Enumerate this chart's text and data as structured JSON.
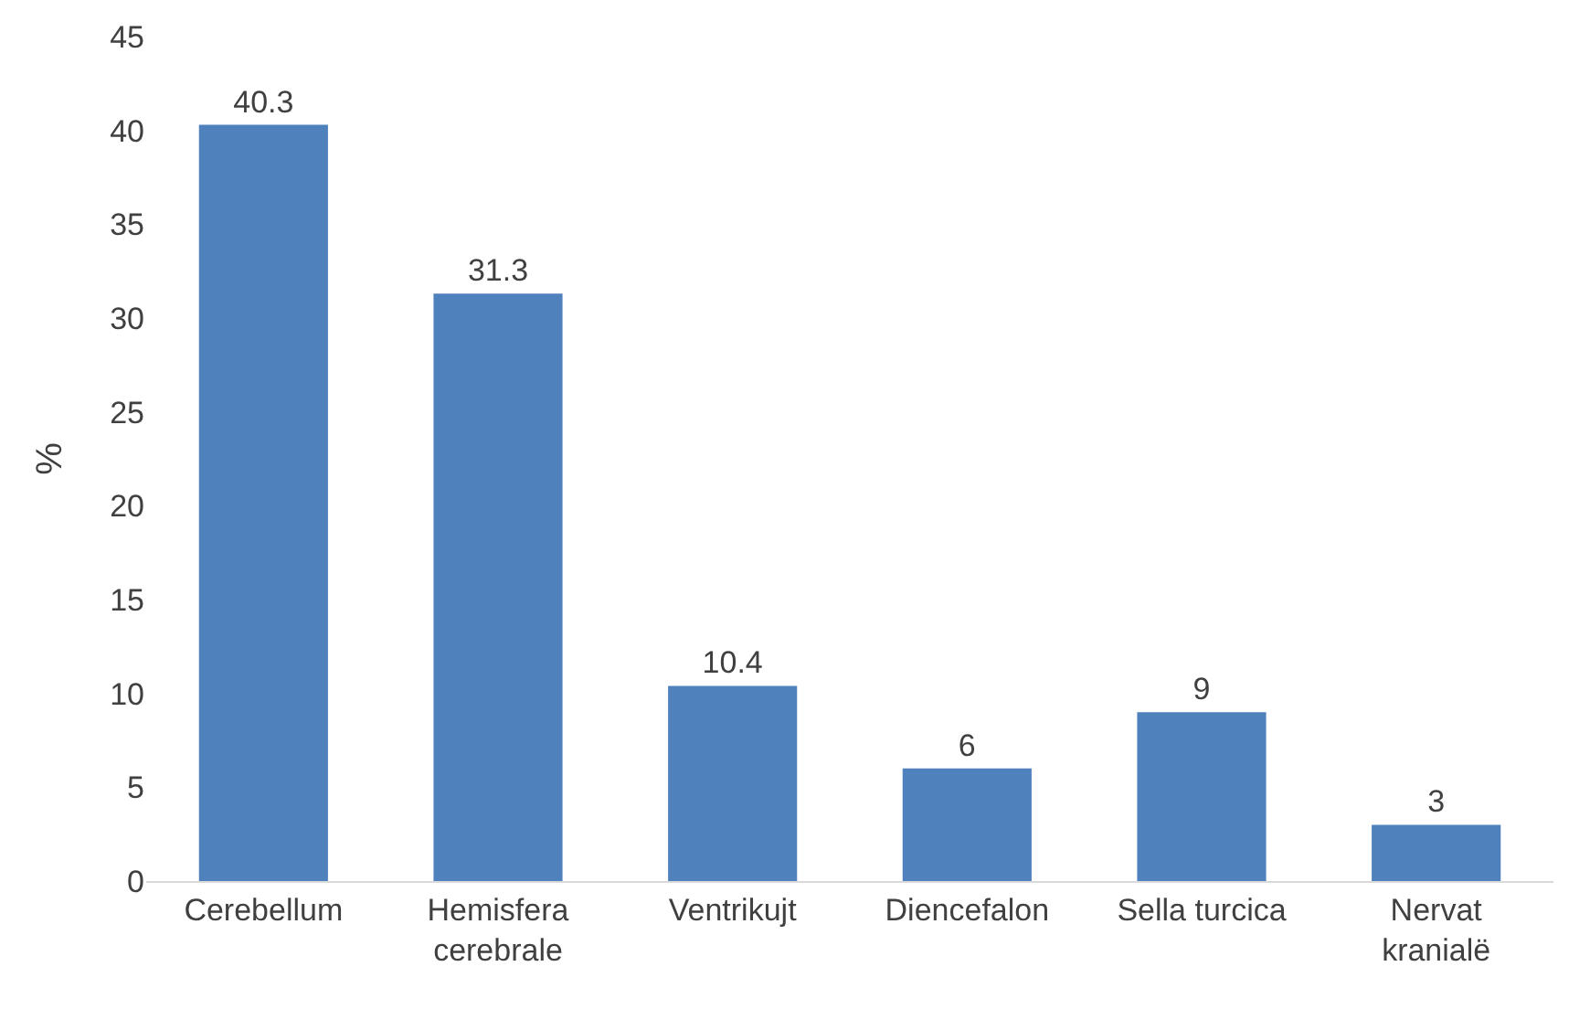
{
  "chart_data": {
    "type": "bar",
    "ylabel": "%",
    "categories": [
      "Cerebellum",
      "Hemisfera cerebrale",
      "Ventrikujt",
      "Diencefalon",
      "Sella turcica",
      "Nervat kranialë"
    ],
    "values": [
      40.3,
      31.3,
      10.4,
      6,
      9,
      3
    ],
    "color": "#4f81bd",
    "ylim": [
      0,
      45
    ],
    "yticks": [
      0,
      5,
      10,
      15,
      20,
      25,
      30,
      35,
      40,
      45
    ],
    "data_labels": true
  }
}
